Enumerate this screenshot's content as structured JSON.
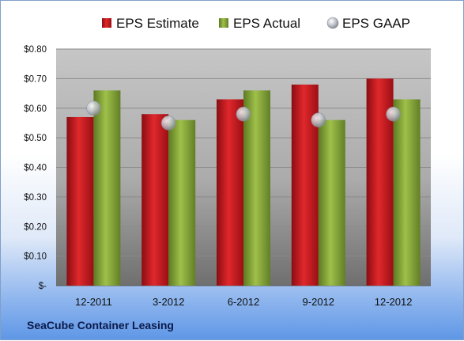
{
  "company": "SeaCube Container Leasing",
  "chart_data": {
    "type": "bar",
    "categories": [
      "12-2011",
      "3-2012",
      "6-2012",
      "9-2012",
      "12-2012"
    ],
    "series": [
      {
        "name": "EPS Estimate",
        "kind": "bar",
        "color": "#c0161c",
        "values": [
          0.57,
          0.58,
          0.63,
          0.68,
          0.7
        ]
      },
      {
        "name": "EPS Actual",
        "kind": "bar",
        "color": "#7e9d34",
        "values": [
          0.66,
          0.56,
          0.66,
          0.56,
          0.63
        ]
      },
      {
        "name": "EPS GAAP",
        "kind": "marker",
        "color": "#b0b4bc",
        "values": [
          0.6,
          0.55,
          0.58,
          0.56,
          0.58
        ]
      }
    ],
    "yticks": [
      "$-",
      "$0.10",
      "$0.20",
      "$0.30",
      "$0.40",
      "$0.50",
      "$0.60",
      "$0.70",
      "$0.80"
    ],
    "ylim": [
      0,
      0.8
    ],
    "grid": true,
    "legend": "top"
  }
}
